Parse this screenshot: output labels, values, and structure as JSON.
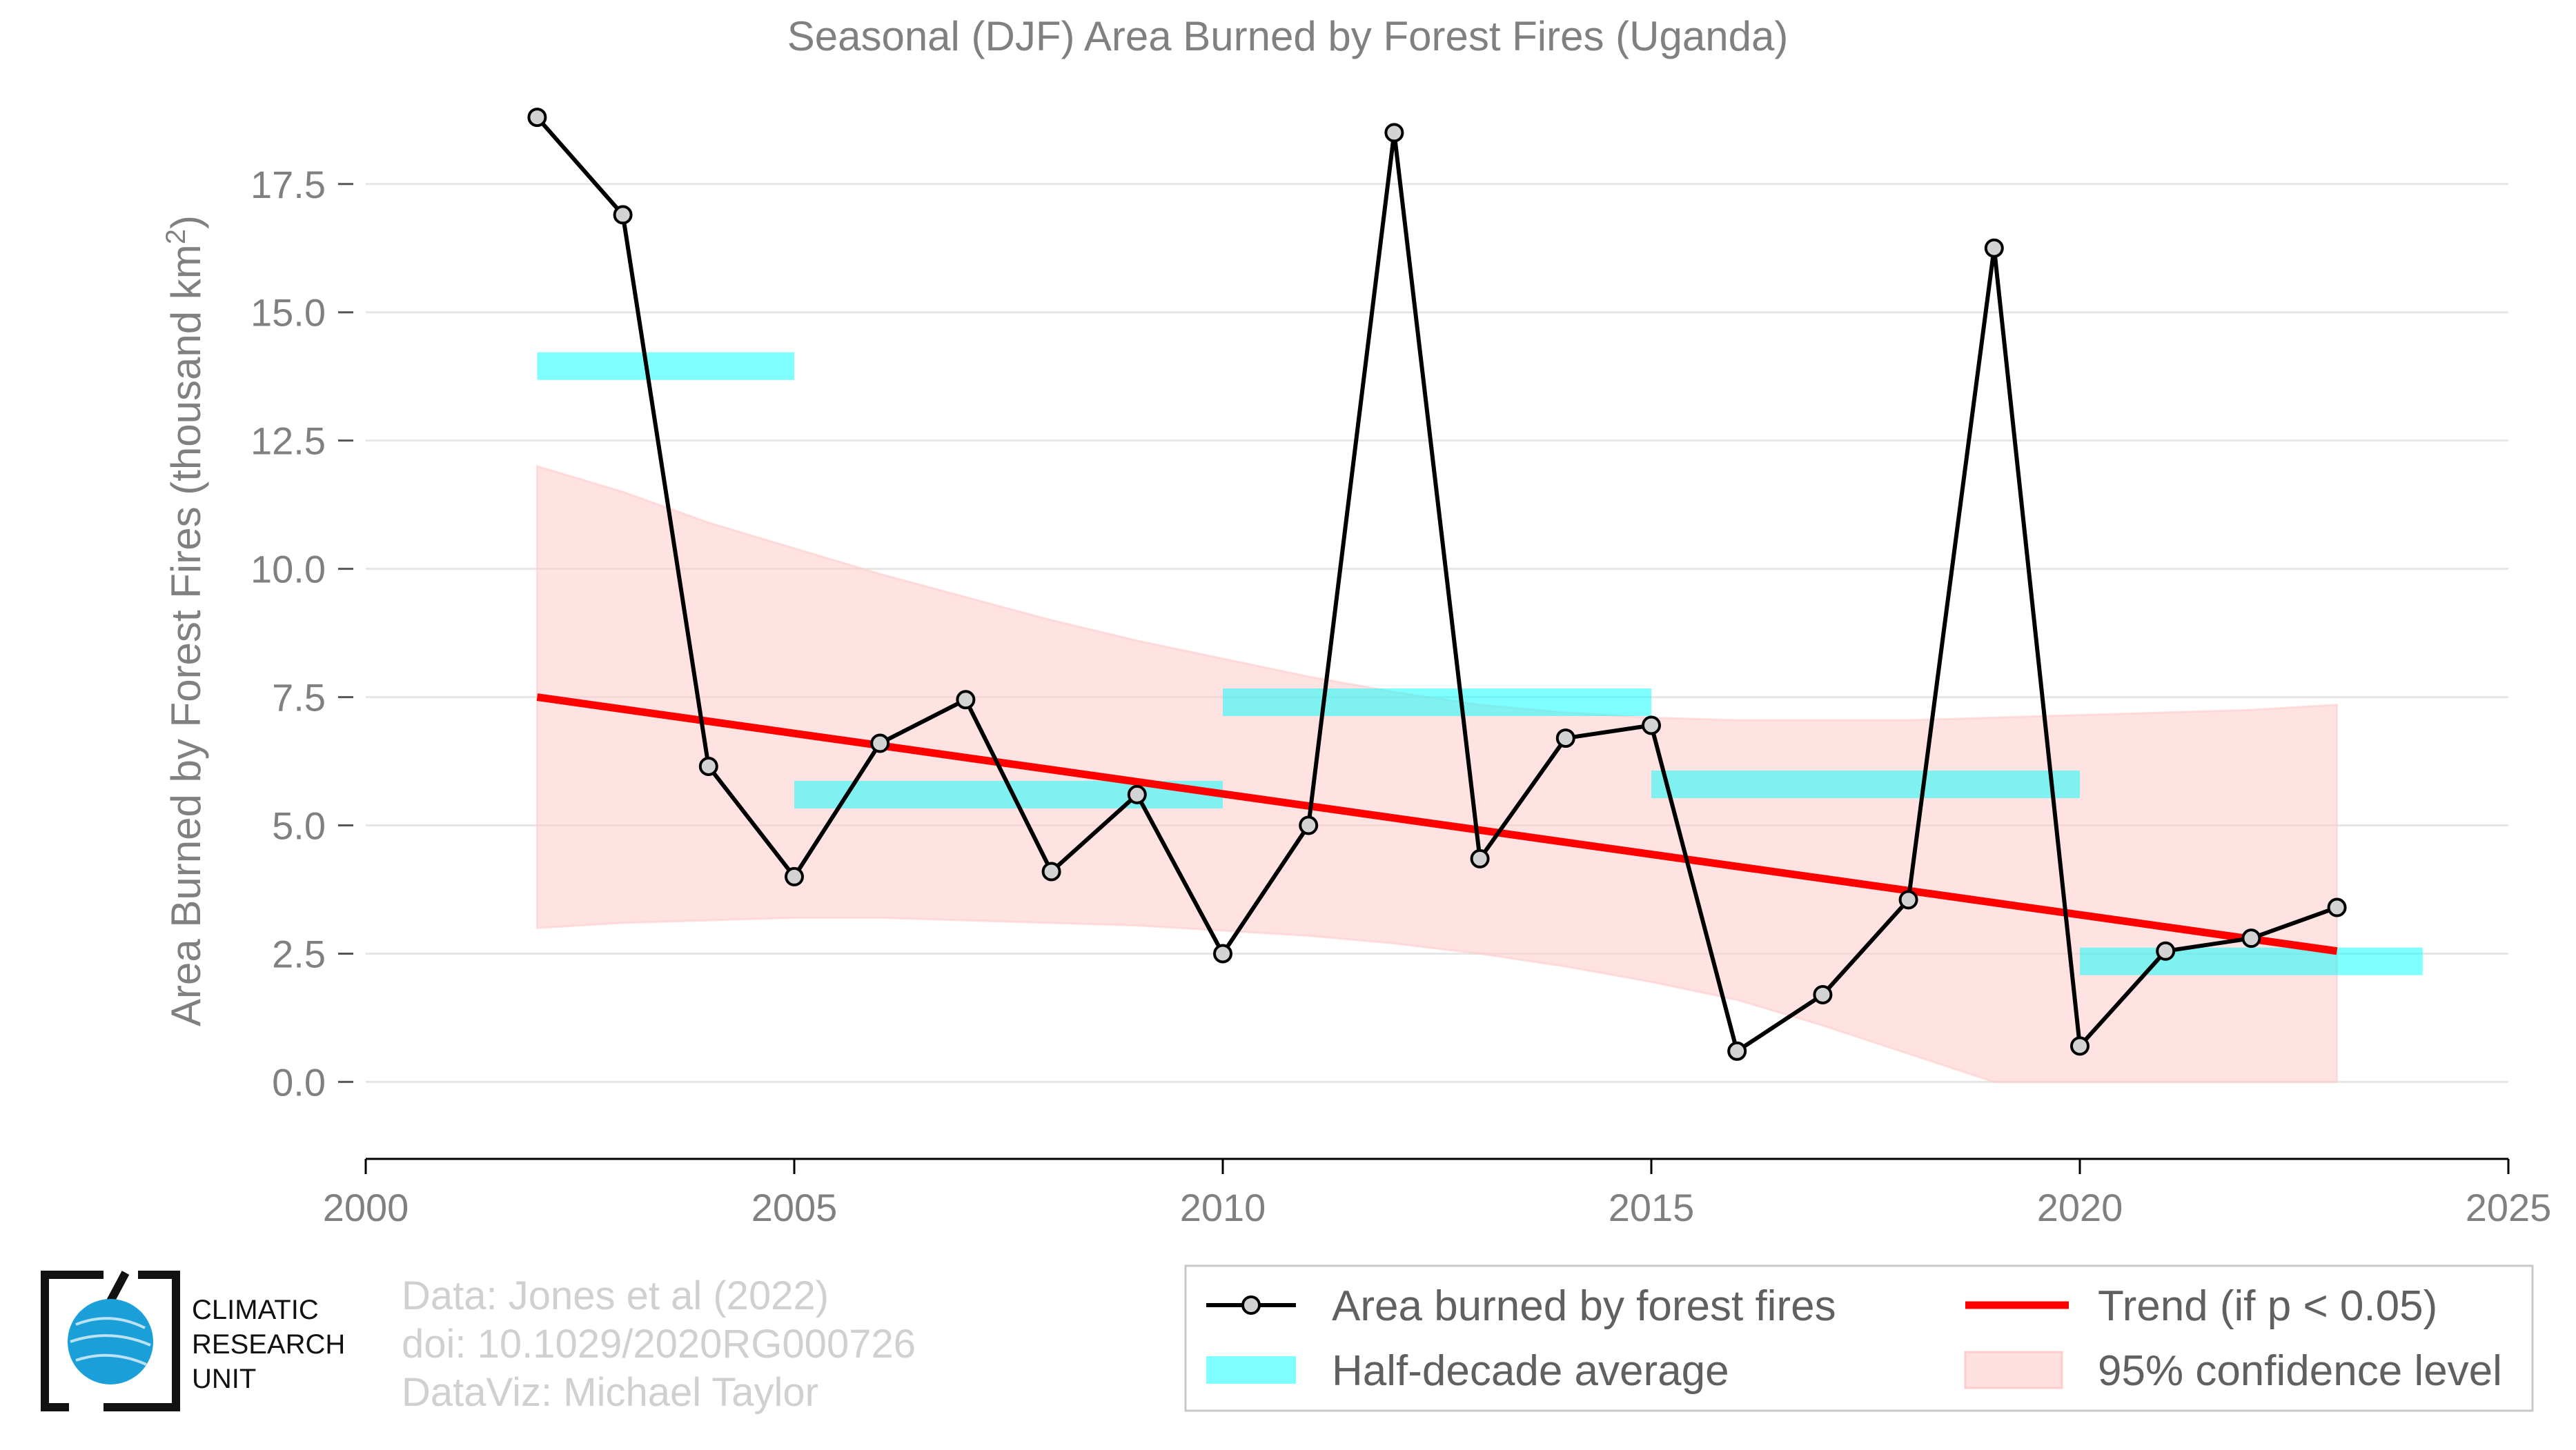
{
  "chart_data": {
    "type": "line",
    "title": "Seasonal (DJF) Area Burned by Forest Fires (Uganda)",
    "ylabel": "Area Burned by Forest Fires (thousand km",
    "ylabel_sup": "2",
    "ylabel_end": ")",
    "xlim": [
      2000,
      2025
    ],
    "ylim": [
      -1.5,
      19.5
    ],
    "xticks": [
      2000,
      2005,
      2010,
      2015,
      2020,
      2025
    ],
    "xtick_labels": [
      "2000",
      "2005",
      "2010",
      "2015",
      "2020",
      "2025"
    ],
    "yticks": [
      0,
      2.5,
      5,
      7.5,
      10,
      12.5,
      15,
      17.5
    ],
    "ytick_labels": [
      "0.0",
      "2.5",
      "5.0",
      "7.5",
      "10.0",
      "12.5",
      "15.0",
      "17.5"
    ],
    "grid": "horizontal",
    "series": [
      {
        "name": "Area burned by forest fires",
        "x": [
          2002,
          2003,
          2004,
          2005,
          2006,
          2007,
          2008,
          2009,
          2010,
          2011,
          2012,
          2013,
          2014,
          2015,
          2016,
          2017,
          2018,
          2019,
          2020,
          2021,
          2022,
          2023
        ],
        "y": [
          18.8,
          16.9,
          6.15,
          4.0,
          6.6,
          7.45,
          4.1,
          5.6,
          2.5,
          5.0,
          18.5,
          4.35,
          6.7,
          6.95,
          0.6,
          1.7,
          3.55,
          16.25,
          0.7,
          2.55,
          2.8,
          3.4
        ],
        "color": "#000000",
        "marker_fill": "#d3d3d3"
      }
    ],
    "half_decade_average": {
      "name": "Half-decade average",
      "color": "#00ffff",
      "segments": [
        {
          "x0": 2002,
          "x1": 2005,
          "y": 13.95
        },
        {
          "x0": 2005,
          "x1": 2010,
          "y": 5.6
        },
        {
          "x0": 2010,
          "x1": 2015,
          "y": 7.4
        },
        {
          "x0": 2015,
          "x1": 2020,
          "y": 5.8
        },
        {
          "x0": 2020,
          "x1": 2024,
          "y": 2.35
        }
      ]
    },
    "trend": {
      "name": "Trend (if p < 0.05)",
      "color": "#ff0000",
      "x0": 2002,
      "y0": 7.5,
      "x1": 2023,
      "y1": 2.55
    },
    "confidence": {
      "name": "95% confidence level",
      "color": "#ffcccc",
      "x": [
        2002,
        2003,
        2004,
        2005,
        2006,
        2007,
        2008,
        2009,
        2010,
        2011,
        2012,
        2013,
        2014,
        2015,
        2016,
        2017,
        2018,
        2019,
        2020,
        2021,
        2022,
        2023
      ],
      "upper": [
        12.0,
        11.5,
        10.9,
        10.4,
        9.9,
        9.45,
        9.0,
        8.6,
        8.25,
        7.9,
        7.6,
        7.35,
        7.2,
        7.1,
        7.05,
        7.05,
        7.05,
        7.1,
        7.15,
        7.2,
        7.25,
        7.35
      ],
      "lower": [
        3.0,
        3.1,
        3.15,
        3.2,
        3.2,
        3.15,
        3.1,
        3.05,
        2.95,
        2.85,
        2.7,
        2.5,
        2.25,
        1.95,
        1.6,
        1.1,
        0.55,
        0.0,
        0.0,
        0.0,
        0.0,
        0.0
      ]
    },
    "legend_position": "bottom-right"
  },
  "credits": {
    "line1": "Data: Jones et al (2022)",
    "line2": "doi: 10.1029/2020RG000726",
    "line3": "DataViz: Michael Taylor"
  },
  "logo": {
    "line1": "CLIMATIC",
    "line2": "RESEARCH",
    "line3": "UNIT",
    "globe_color": "#1a9fd8"
  }
}
